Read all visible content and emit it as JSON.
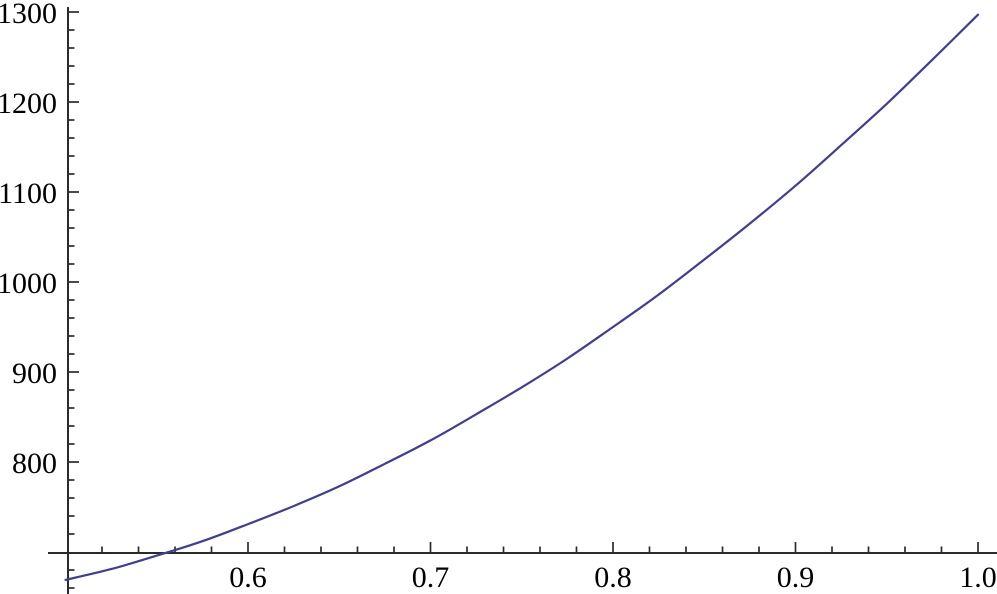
{
  "chart_data": {
    "type": "line",
    "title": "",
    "xlabel": "",
    "ylabel": "",
    "grid": false,
    "legend": null,
    "x": [
      0.5,
      0.525,
      0.55,
      0.575,
      0.6,
      0.625,
      0.65,
      0.675,
      0.7,
      0.725,
      0.75,
      0.775,
      0.8,
      0.825,
      0.85,
      0.875,
      0.9,
      0.925,
      0.95,
      0.975,
      1.0
    ],
    "y": [
      669,
      681,
      696,
      712,
      731,
      751,
      773,
      798,
      824,
      853,
      883,
      915,
      950,
      986,
      1025,
      1065,
      1107,
      1152,
      1198,
      1247,
      1297
    ],
    "x_axis": {
      "major_ticks": [
        0.6,
        0.7,
        0.8,
        0.9,
        1.0
      ],
      "major_labels": [
        "0.6",
        "0.7",
        "0.8",
        "0.9",
        "1.0"
      ],
      "minor_ticks": [
        0.52,
        0.54,
        0.56,
        0.58,
        0.62,
        0.64,
        0.66,
        0.68,
        0.72,
        0.74,
        0.76,
        0.78,
        0.82,
        0.84,
        0.86,
        0.88,
        0.92,
        0.94,
        0.96,
        0.98
      ],
      "visible_range": [
        0.49,
        1.01
      ],
      "axes_cross_at": 0.5
    },
    "y_axis": {
      "major_ticks": [
        800,
        900,
        1000,
        1100,
        1200,
        1300
      ],
      "major_labels": [
        "800",
        "900",
        "1000",
        "1100",
        "1200",
        "1300"
      ],
      "minor_ticks": [
        660,
        680,
        720,
        740,
        760,
        780,
        820,
        840,
        860,
        880,
        920,
        940,
        960,
        980,
        1020,
        1040,
        1060,
        1080,
        1120,
        1140,
        1160,
        1180,
        1220,
        1240,
        1260,
        1280
      ],
      "visible_range": [
        655,
        1300
      ],
      "axes_cross_at": 700
    },
    "colors": {
      "line": "#3f3d99",
      "axis": "#2b2b2b",
      "label": "#000000",
      "background": "#ffffff"
    }
  }
}
